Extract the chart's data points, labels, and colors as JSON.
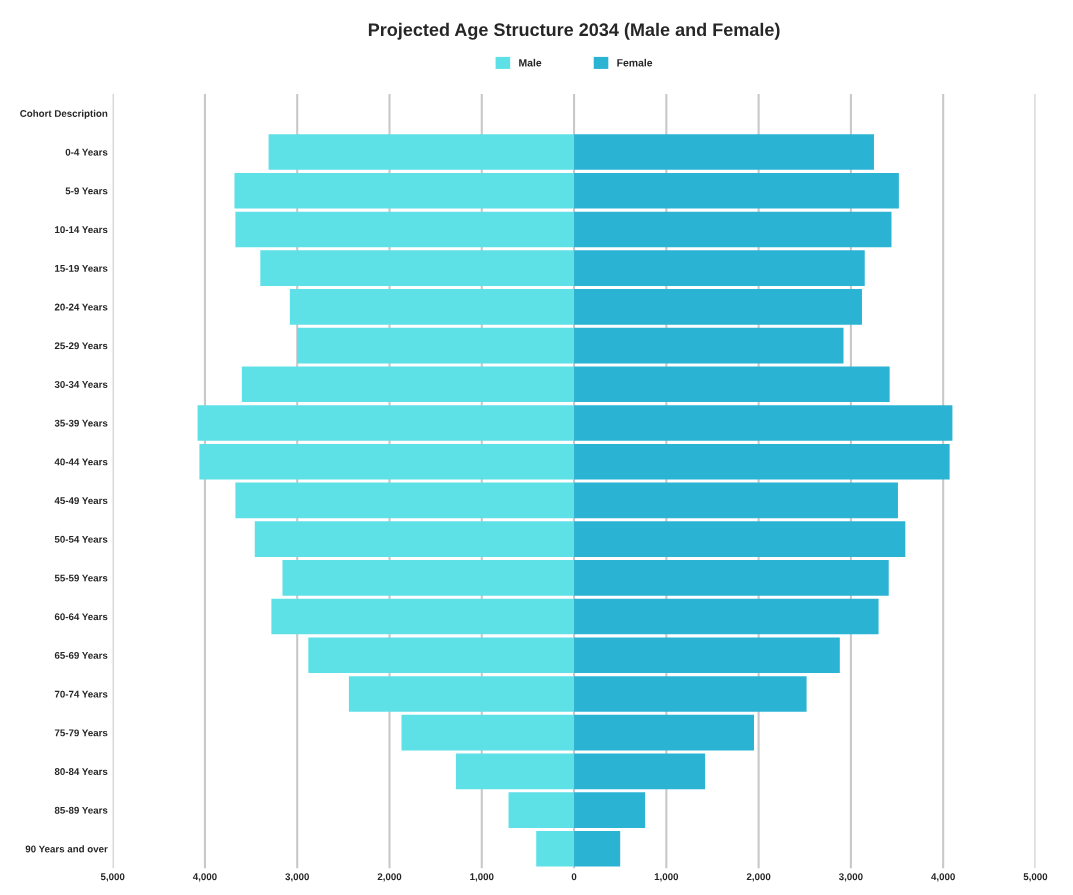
{
  "chart_data": {
    "type": "bar",
    "orientation": "horizontal",
    "stacked": true,
    "title": "Projected Age Structure 2034 (Male and Female)",
    "categories": [
      "Cohort Description",
      "0-4 Years",
      "5-9 Years",
      "10-14 Years",
      "15-19 Years",
      "20-24 Years",
      "25-29 Years",
      "30-34 Years",
      "35-39 Years",
      "40-44 Years",
      "45-49 Years",
      "50-54 Years",
      "55-59 Years",
      "60-64 Years",
      "65-69 Years",
      "70-74 Years",
      "75-79 Years",
      "80-84 Years",
      "85-89 Years",
      "90 Years and over"
    ],
    "series": [
      {
        "name": "Male",
        "color": "#5ee1e6",
        "values": [
          null,
          -3310,
          -3680,
          -3670,
          -3400,
          -3080,
          -3000,
          -3600,
          -4080,
          -4060,
          -3670,
          -3460,
          -3160,
          -3280,
          -2880,
          -2440,
          -1870,
          -1280,
          -710,
          -410
        ]
      },
      {
        "name": "Female",
        "color": "#2bb3d4",
        "values": [
          null,
          3250,
          3520,
          3440,
          3150,
          3120,
          2920,
          3420,
          4100,
          4070,
          3510,
          3590,
          3410,
          3300,
          2880,
          2520,
          1950,
          1420,
          770,
          500
        ]
      }
    ],
    "xlim": [
      -5000,
      5000
    ],
    "xticks": [
      {
        "value": -5000,
        "label": "5,000"
      },
      {
        "value": -4000,
        "label": "4,000"
      },
      {
        "value": -3000,
        "label": "3,000"
      },
      {
        "value": -2000,
        "label": "2,000"
      },
      {
        "value": -1000,
        "label": "1,000"
      },
      0,
      {
        "value": 1000,
        "label": "1,000"
      },
      {
        "value": 2000,
        "label": "2,000"
      },
      {
        "value": 3000,
        "label": "3,000"
      },
      {
        "value": 4000,
        "label": "4,000"
      },
      {
        "value": 5000,
        "label": "5,000"
      }
    ],
    "grid": "x",
    "legend": "top"
  }
}
